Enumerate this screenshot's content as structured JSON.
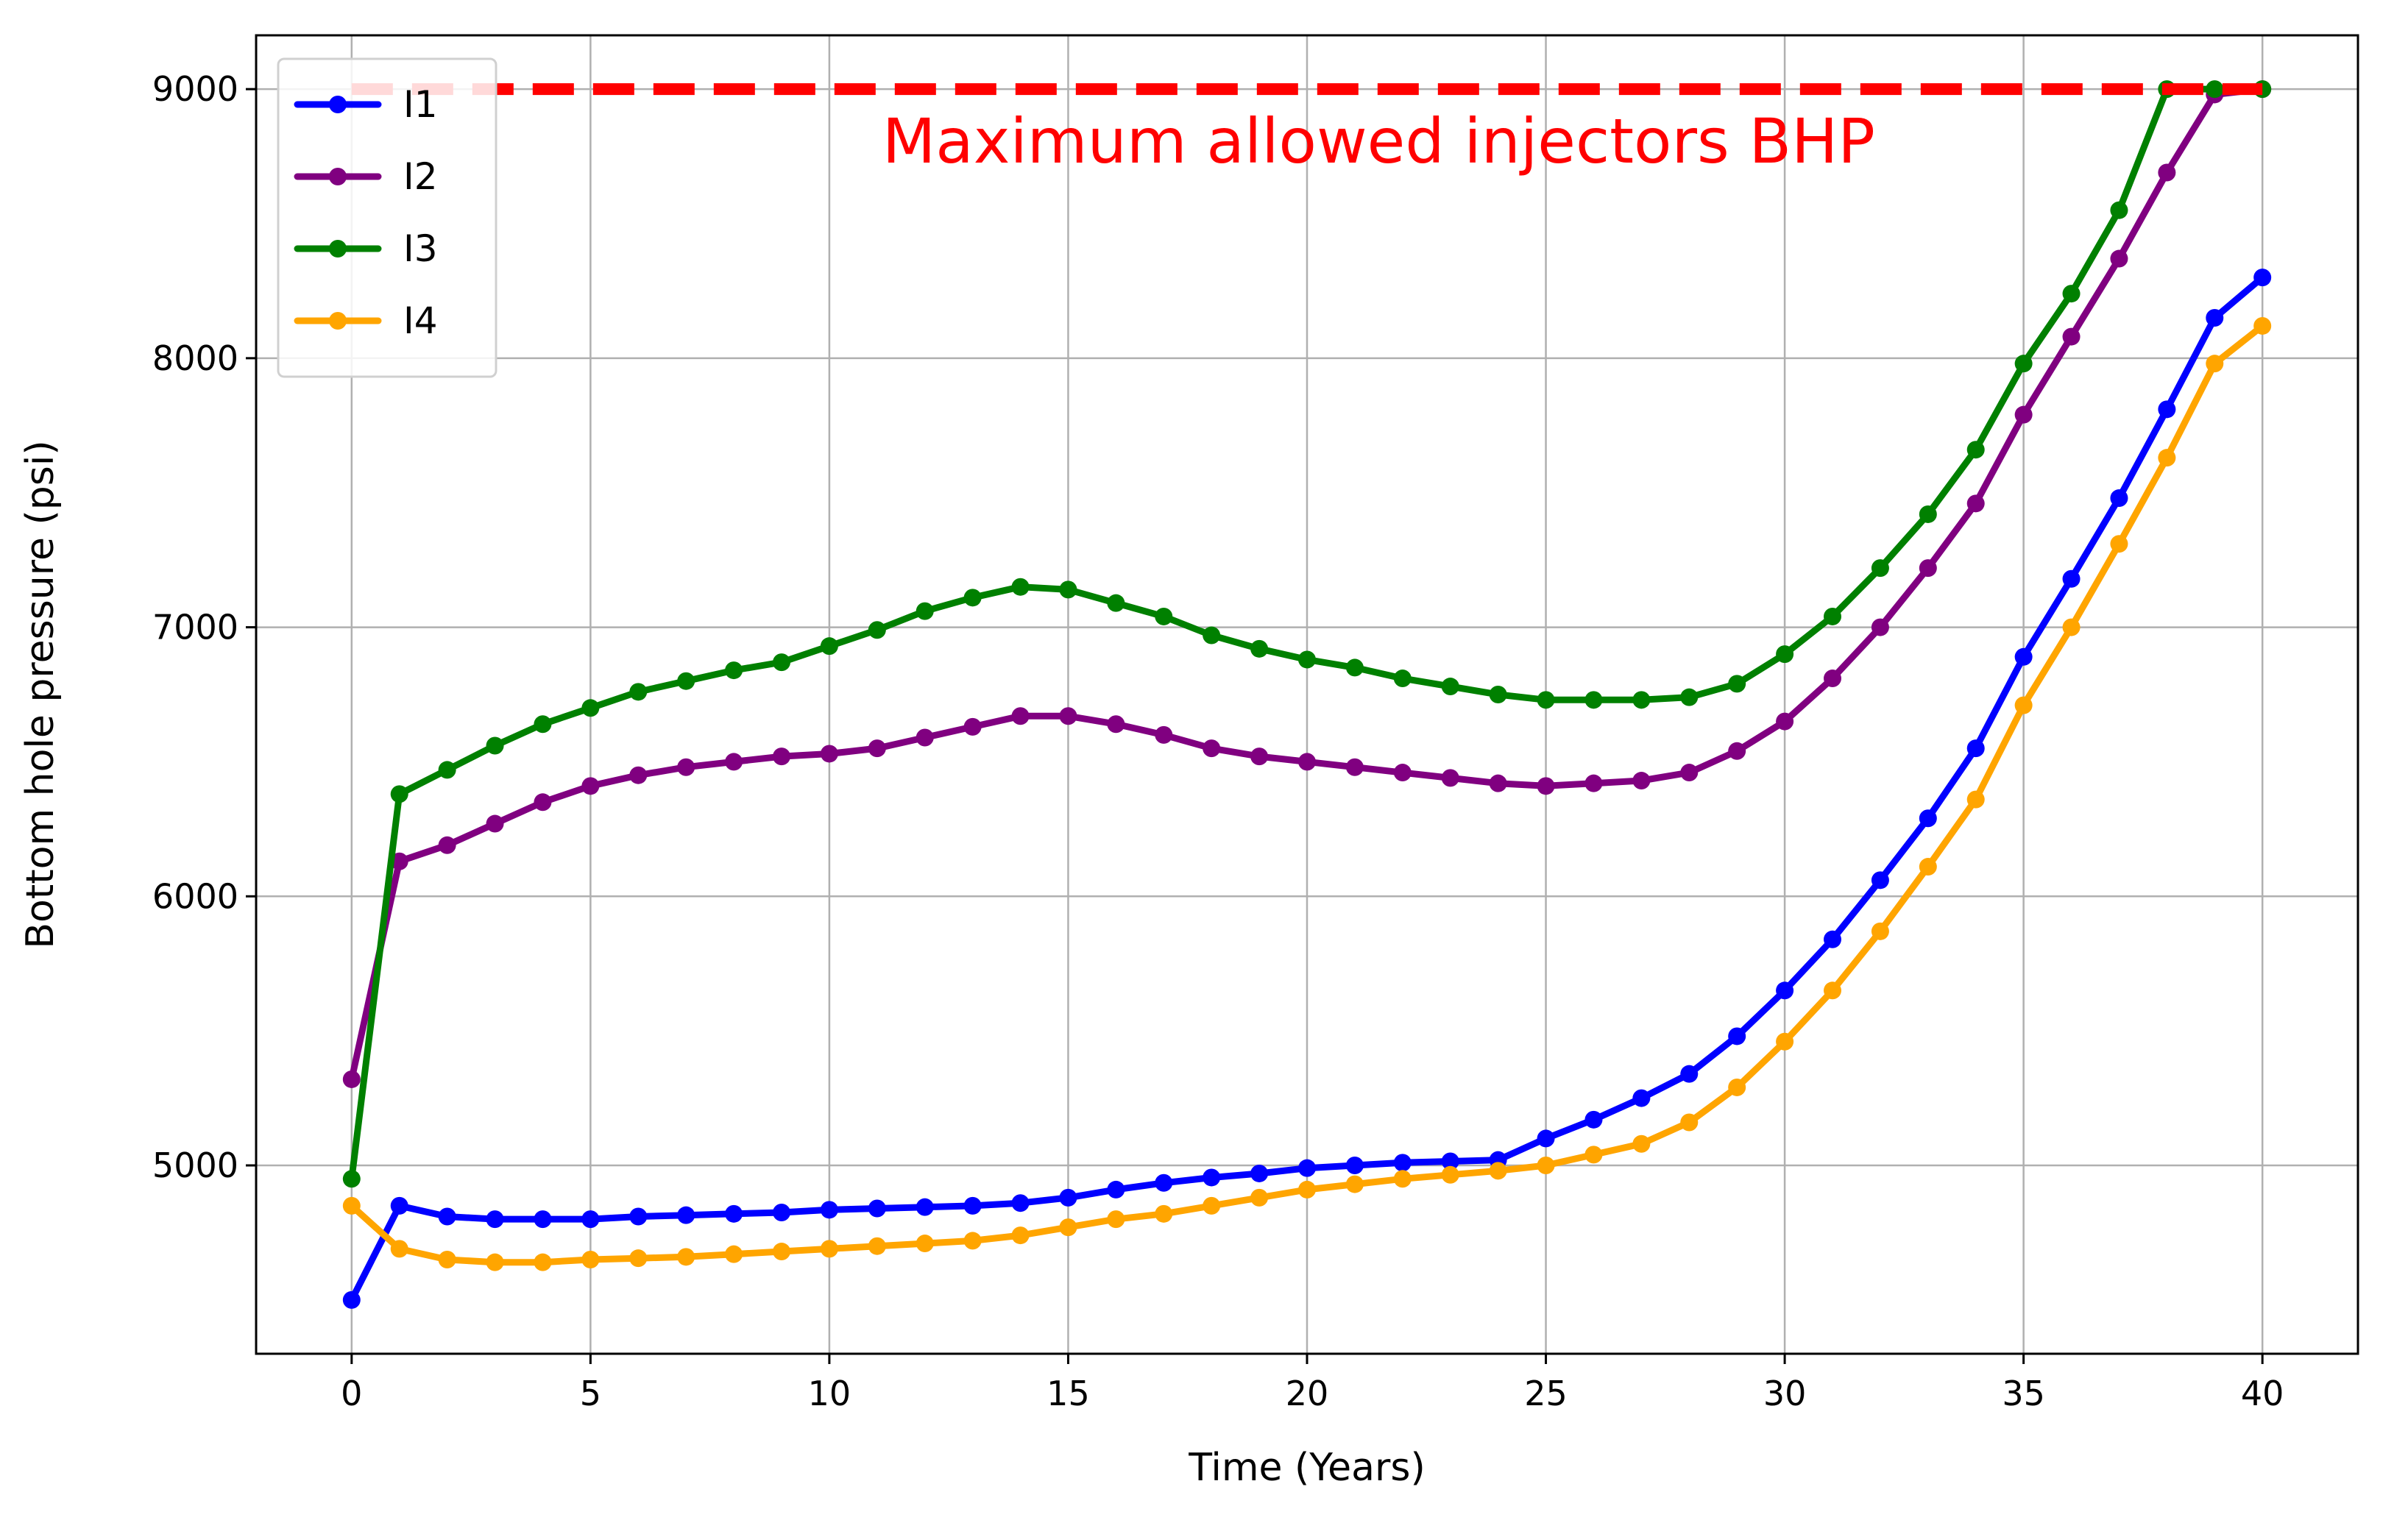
{
  "chart_data": {
    "type": "line",
    "xlabel": "Time (Years)",
    "ylabel": "Bottom hole pressure (psi)",
    "xlim": [
      -2,
      42
    ],
    "ylim": [
      4300,
      9200
    ],
    "xticks": [
      0,
      5,
      10,
      15,
      20,
      25,
      30,
      35,
      40
    ],
    "yticks": [
      5000,
      6000,
      7000,
      8000,
      9000
    ],
    "grid": true,
    "legend_position": "top-left",
    "x": [
      0,
      1,
      2,
      3,
      4,
      5,
      6,
      7,
      8,
      9,
      10,
      11,
      12,
      13,
      14,
      15,
      16,
      17,
      18,
      19,
      20,
      21,
      22,
      23,
      24,
      25,
      26,
      27,
      28,
      29,
      30,
      31,
      32,
      33,
      34,
      35,
      36,
      37,
      38,
      39,
      40
    ],
    "series": [
      {
        "name": "I1",
        "color": "#0000ff",
        "values": [
          4500,
          4850,
          4810,
          4800,
          4800,
          4800,
          4810,
          4815,
          4820,
          4825,
          4835,
          4840,
          4845,
          4850,
          4860,
          4880,
          4910,
          4935,
          4955,
          4970,
          4990,
          5000,
          5010,
          5015,
          5020,
          5100,
          5170,
          5250,
          5340,
          5480,
          5650,
          5840,
          6060,
          6290,
          6550,
          6890,
          7180,
          7480,
          7810,
          8150,
          8300
        ]
      },
      {
        "name": "I2",
        "color": "#800080",
        "values": [
          5320,
          6130,
          6190,
          6270,
          6350,
          6410,
          6450,
          6480,
          6500,
          6520,
          6530,
          6550,
          6590,
          6630,
          6670,
          6670,
          6640,
          6600,
          6550,
          6520,
          6500,
          6480,
          6460,
          6440,
          6420,
          6410,
          6420,
          6430,
          6460,
          6540,
          6650,
          6810,
          7000,
          7220,
          7460,
          7790,
          8080,
          8370,
          8690,
          8980,
          9000
        ]
      },
      {
        "name": "I3",
        "color": "#008000",
        "values": [
          4950,
          6380,
          6470,
          6560,
          6640,
          6700,
          6760,
          6800,
          6840,
          6870,
          6930,
          6990,
          7060,
          7110,
          7150,
          7140,
          7090,
          7040,
          6970,
          6920,
          6880,
          6850,
          6810,
          6780,
          6750,
          6730,
          6730,
          6730,
          6740,
          6790,
          6900,
          7040,
          7220,
          7420,
          7660,
          7980,
          8240,
          8550,
          9000,
          9000,
          9000
        ]
      },
      {
        "name": "I4",
        "color": "#ffa500",
        "values": [
          4850,
          4690,
          4650,
          4640,
          4640,
          4650,
          4655,
          4660,
          4670,
          4680,
          4690,
          4700,
          4710,
          4720,
          4740,
          4770,
          4800,
          4820,
          4850,
          4880,
          4910,
          4930,
          4950,
          4965,
          4980,
          5000,
          5040,
          5080,
          5160,
          5290,
          5460,
          5650,
          5870,
          6110,
          6360,
          6710,
          7000,
          7310,
          7630,
          7980,
          8120
        ]
      }
    ],
    "reference_line": {
      "y": 9000,
      "x_range": [
        0,
        40
      ],
      "color": "#ff0000",
      "label": "Maximum allowed injectors BHP"
    }
  }
}
